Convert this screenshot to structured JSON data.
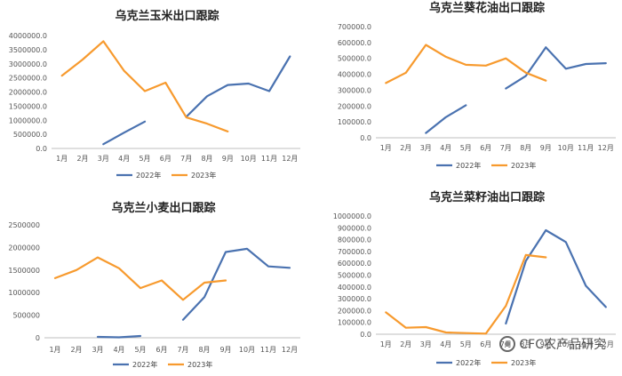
{
  "colors": {
    "series_2022": "#4a72b0",
    "series_2023": "#f79a2e"
  },
  "watermark": {
    "text": "CFC农产品研究"
  },
  "chart_data": [
    {
      "type": "line",
      "title": "乌克兰玉米出口跟踪",
      "categories": [
        "1月",
        "2月",
        "3月",
        "4月",
        "5月",
        "6月",
        "7月",
        "8月",
        "9月",
        "10月",
        "11月",
        "12月"
      ],
      "ylim": [
        0,
        4000000
      ],
      "yticks": [
        "0.0",
        "500000.0",
        "1000000.0",
        "1500000.0",
        "2000000.0",
        "2500000.0",
        "3000000.0",
        "3500000.0",
        "4000000.0"
      ],
      "legend_position": "bottom",
      "series": [
        {
          "name": "2022年",
          "segments": [
            [
              null,
              null,
              150000,
              560000,
              950000,
              null,
              null,
              null,
              null,
              null,
              null,
              null
            ],
            [
              null,
              null,
              null,
              null,
              null,
              null,
              1120000,
              1850000,
              2250000,
              2300000,
              2030000,
              3260000
            ]
          ]
        },
        {
          "name": "2023年",
          "segments": [
            [
              2580000,
              3150000,
              3800000,
              2750000,
              2030000,
              2330000,
              1100000,
              880000,
              600000,
              null,
              null,
              null
            ]
          ]
        }
      ]
    },
    {
      "type": "line",
      "title": "乌克兰葵花油出口跟踪",
      "categories": [
        "1月",
        "2月",
        "3月",
        "4月",
        "5月",
        "6月",
        "7月",
        "8月",
        "9月",
        "10月",
        "11月",
        "12月"
      ],
      "ylim": [
        0,
        700000
      ],
      "yticks": [
        "0.0",
        "100000.0",
        "200000.0",
        "300000.0",
        "400000.0",
        "500000.0",
        "600000.0",
        "700000.0"
      ],
      "legend_position": "bottom",
      "series": [
        {
          "name": "2022年",
          "segments": [
            [
              null,
              null,
              30000,
              130000,
              205000,
              null,
              null,
              null,
              null,
              null,
              null,
              null
            ],
            [
              null,
              null,
              null,
              null,
              null,
              null,
              310000,
              390000,
              570000,
              435000,
              465000,
              470000
            ]
          ]
        },
        {
          "name": "2023年",
          "segments": [
            [
              345000,
              410000,
              585000,
              510000,
              460000,
              455000,
              500000,
              410000,
              360000,
              null,
              null,
              null
            ]
          ]
        }
      ]
    },
    {
      "type": "line",
      "title": "乌克兰小麦出口跟踪",
      "categories": [
        "1月",
        "2月",
        "3月",
        "4月",
        "5月",
        "6月",
        "7月",
        "8月",
        "9月",
        "10月",
        "11月",
        "12月"
      ],
      "ylim": [
        0,
        2500000
      ],
      "yticks": [
        "0",
        "500000",
        "1000000",
        "1500000",
        "2000000",
        "2500000"
      ],
      "legend_position": "bottom",
      "series": [
        {
          "name": "2022年",
          "segments": [
            [
              null,
              null,
              20000,
              10000,
              40000,
              null,
              null,
              null,
              null,
              null,
              null,
              null
            ],
            [
              null,
              null,
              null,
              null,
              null,
              null,
              400000,
              900000,
              1900000,
              1970000,
              1580000,
              1550000
            ]
          ]
        },
        {
          "name": "2023年",
          "segments": [
            [
              1320000,
              1500000,
              1780000,
              1540000,
              1100000,
              1270000,
              840000,
              1220000,
              1270000,
              null,
              null,
              null
            ]
          ]
        }
      ]
    },
    {
      "type": "line",
      "title": "乌克兰菜籽油出口跟踪",
      "categories": [
        "1月",
        "2月",
        "3月",
        "4月",
        "5月",
        "6月",
        "7月",
        "8月",
        "9月",
        "10月",
        "11月",
        "12月"
      ],
      "ylim": [
        0,
        1000000
      ],
      "yticks": [
        "0.0",
        "100000.0",
        "200000.0",
        "300000.0",
        "400000.0",
        "500000.0",
        "600000.0",
        "700000.0",
        "800000.0",
        "900000.0",
        "1000000.0"
      ],
      "legend_position": "bottom",
      "series": [
        {
          "name": "2022年",
          "segments": [
            [
              null,
              null,
              null,
              null,
              null,
              null,
              90000,
              620000,
              880000,
              780000,
              410000,
              230000
            ]
          ]
        },
        {
          "name": "2023年",
          "segments": [
            [
              185000,
              55000,
              60000,
              15000,
              10000,
              5000,
              240000,
              670000,
              650000,
              null,
              null,
              null
            ]
          ]
        }
      ]
    }
  ]
}
